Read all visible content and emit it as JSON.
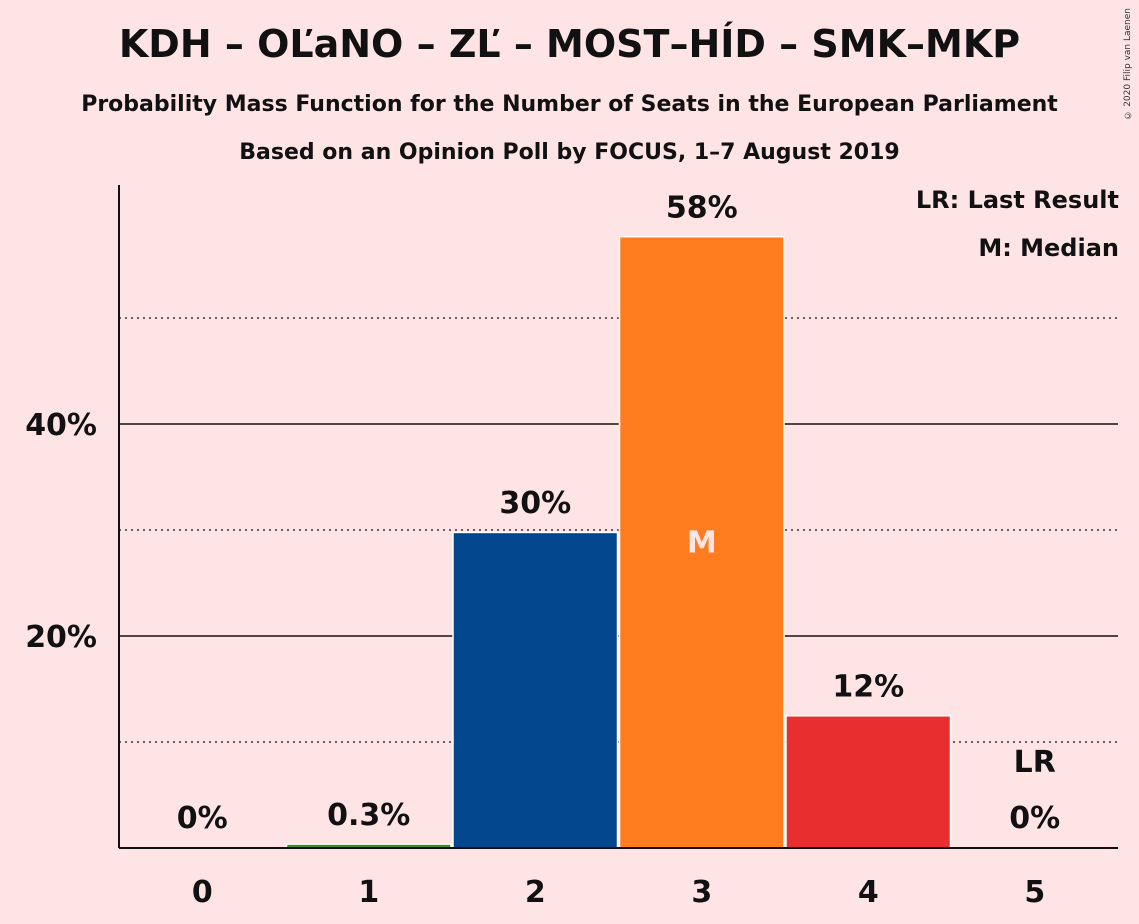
{
  "chart_data": {
    "type": "bar",
    "title": "KDH – OĽaNO – ZĽ – MOST–HÍD – SMK–MKP",
    "subtitle": "Probability Mass Function for the Number of Seats in the European Parliament",
    "source_line": "Based on an Opinion Poll by FOCUS, 1–7 August 2019",
    "copyright": "© 2020 Filip van Laenen",
    "legend": {
      "lr": "LR: Last Result",
      "m": "M: Median"
    },
    "xlabel": "",
    "ylabel": "",
    "ylim": [
      0,
      62.5
    ],
    "y_major_ticks": [
      20,
      40
    ],
    "y_major_labels": [
      "20%",
      "40%"
    ],
    "y_minor_ticks": [
      10,
      30,
      50
    ],
    "categories": [
      "0",
      "1",
      "2",
      "3",
      "4",
      "5"
    ],
    "values": [
      0,
      0.3,
      29.7,
      57.6,
      12.4,
      0
    ],
    "value_labels": [
      "0%",
      "0.3%",
      "30%",
      "58%",
      "12%",
      "0%"
    ],
    "bar_colors": [
      "#FFE4E5",
      "#3C8F1C",
      "#03478E",
      "#FF7C1F",
      "#E82E2E",
      "#FFE4E5"
    ],
    "median_index": 3,
    "median_marker": "M",
    "last_result_index": 5,
    "last_result_marker": "LR"
  }
}
